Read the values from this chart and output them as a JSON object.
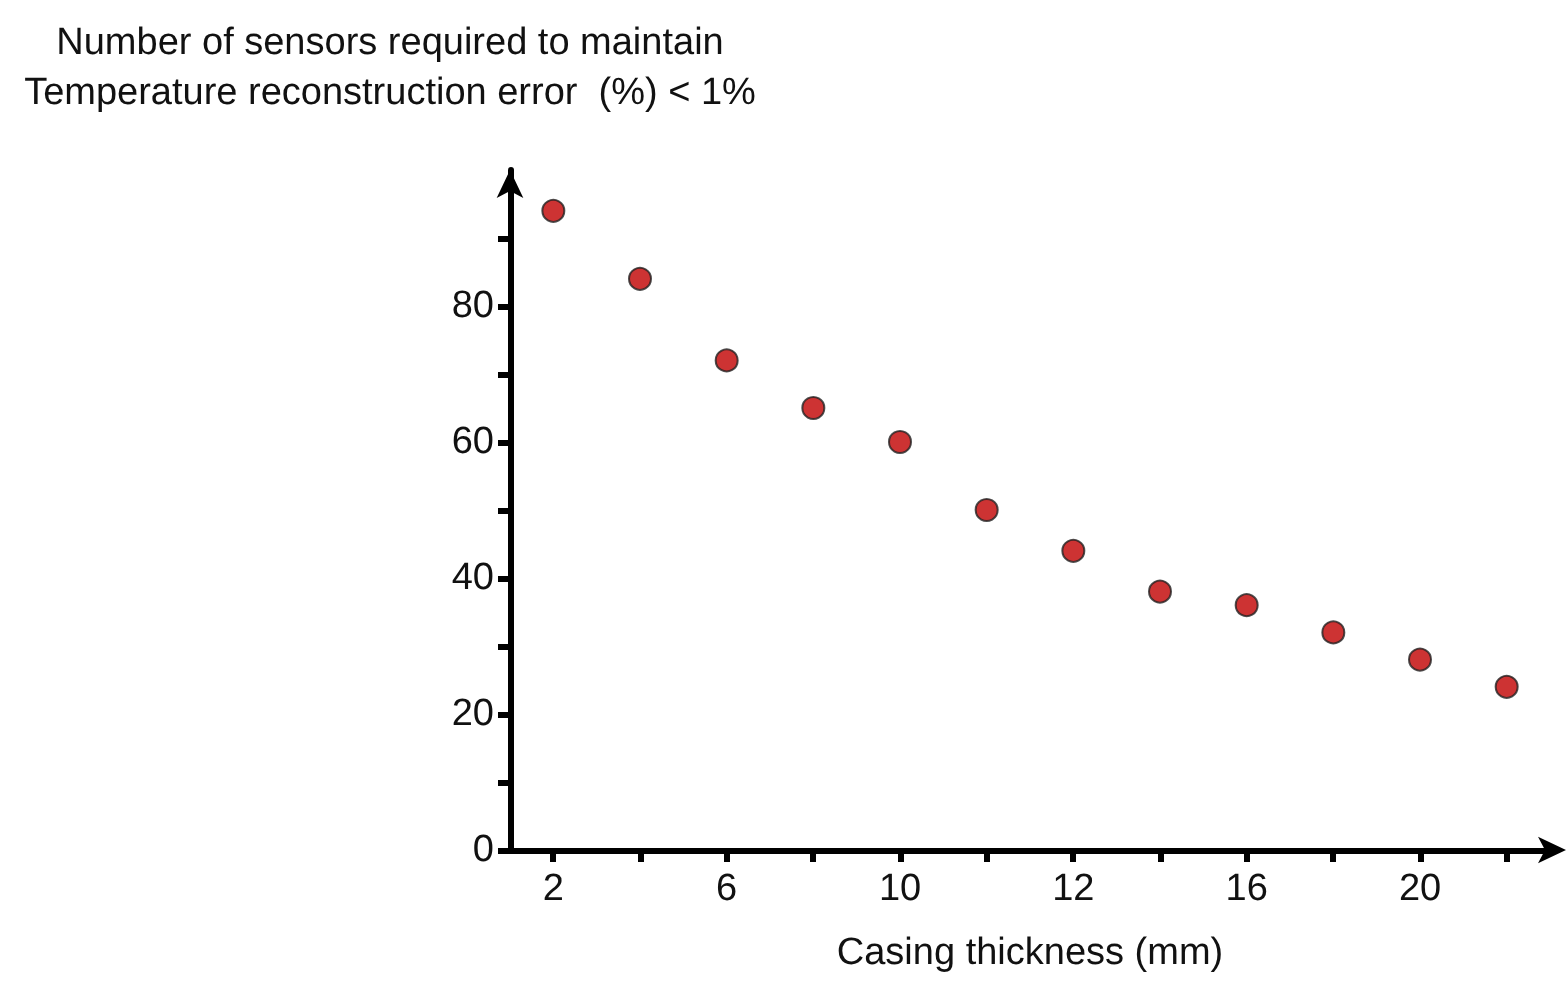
{
  "chart_data": {
    "type": "scatter",
    "title": "Number of sensors required to maintain\nTemperature reconstruction error  (%) < 1%",
    "xlabel": "Casing thickness (mm)",
    "categories": [
      "2",
      null,
      "6",
      null,
      "10",
      null,
      "12",
      null,
      "16",
      null,
      "20",
      null
    ],
    "values": [
      94,
      84,
      72,
      65,
      60,
      50,
      44,
      38,
      36,
      32,
      28,
      24
    ],
    "color": "#c00000",
    "marker": "circle",
    "grid": false,
    "ylim": [
      0,
      100
    ],
    "yticks": [
      0,
      {
        "value": 10,
        "label": null
      },
      20,
      {
        "value": 30,
        "label": null
      },
      40,
      {
        "value": 50,
        "label": null
      },
      60,
      {
        "value": 70,
        "label": null
      },
      80,
      {
        "value": 90,
        "label": null
      }
    ]
  }
}
